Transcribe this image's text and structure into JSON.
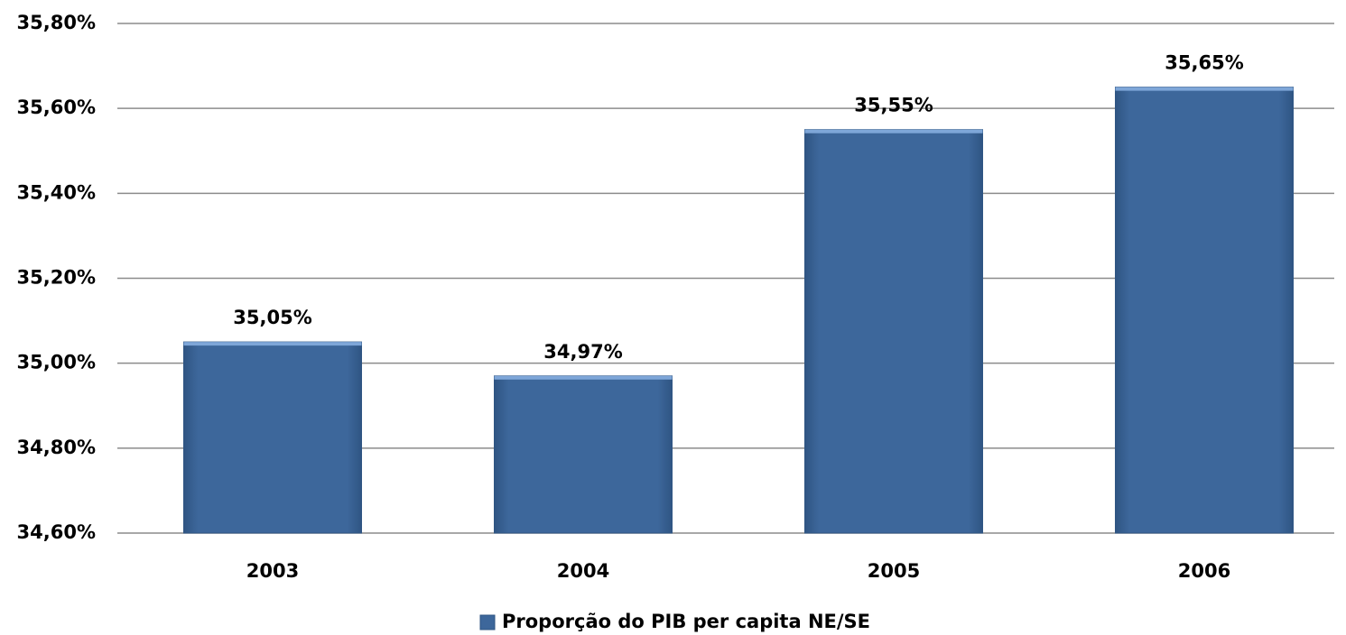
{
  "chart_data": {
    "type": "bar",
    "categories": [
      "2003",
      "2004",
      "2005",
      "2006"
    ],
    "series": [
      {
        "name": "Proporção do PIB per capita NE/SE",
        "color": "#3d679b",
        "values": [
          35.05,
          34.97,
          35.55,
          35.65
        ],
        "value_labels": [
          "35,05%",
          "34,97%",
          "35,55%",
          "35,65%"
        ]
      }
    ],
    "ylim": [
      34.6,
      35.8
    ],
    "yticks": [
      {
        "value": 34.6,
        "label": "34,60%"
      },
      {
        "value": 34.8,
        "label": "34,80%"
      },
      {
        "value": 35.0,
        "label": "35,00%"
      },
      {
        "value": 35.2,
        "label": "35,20%"
      },
      {
        "value": 35.4,
        "label": "35,40%"
      },
      {
        "value": 35.6,
        "label": "35,60%"
      },
      {
        "value": 35.8,
        "label": "35,80%"
      }
    ],
    "grid": true,
    "legend": "bottom"
  }
}
